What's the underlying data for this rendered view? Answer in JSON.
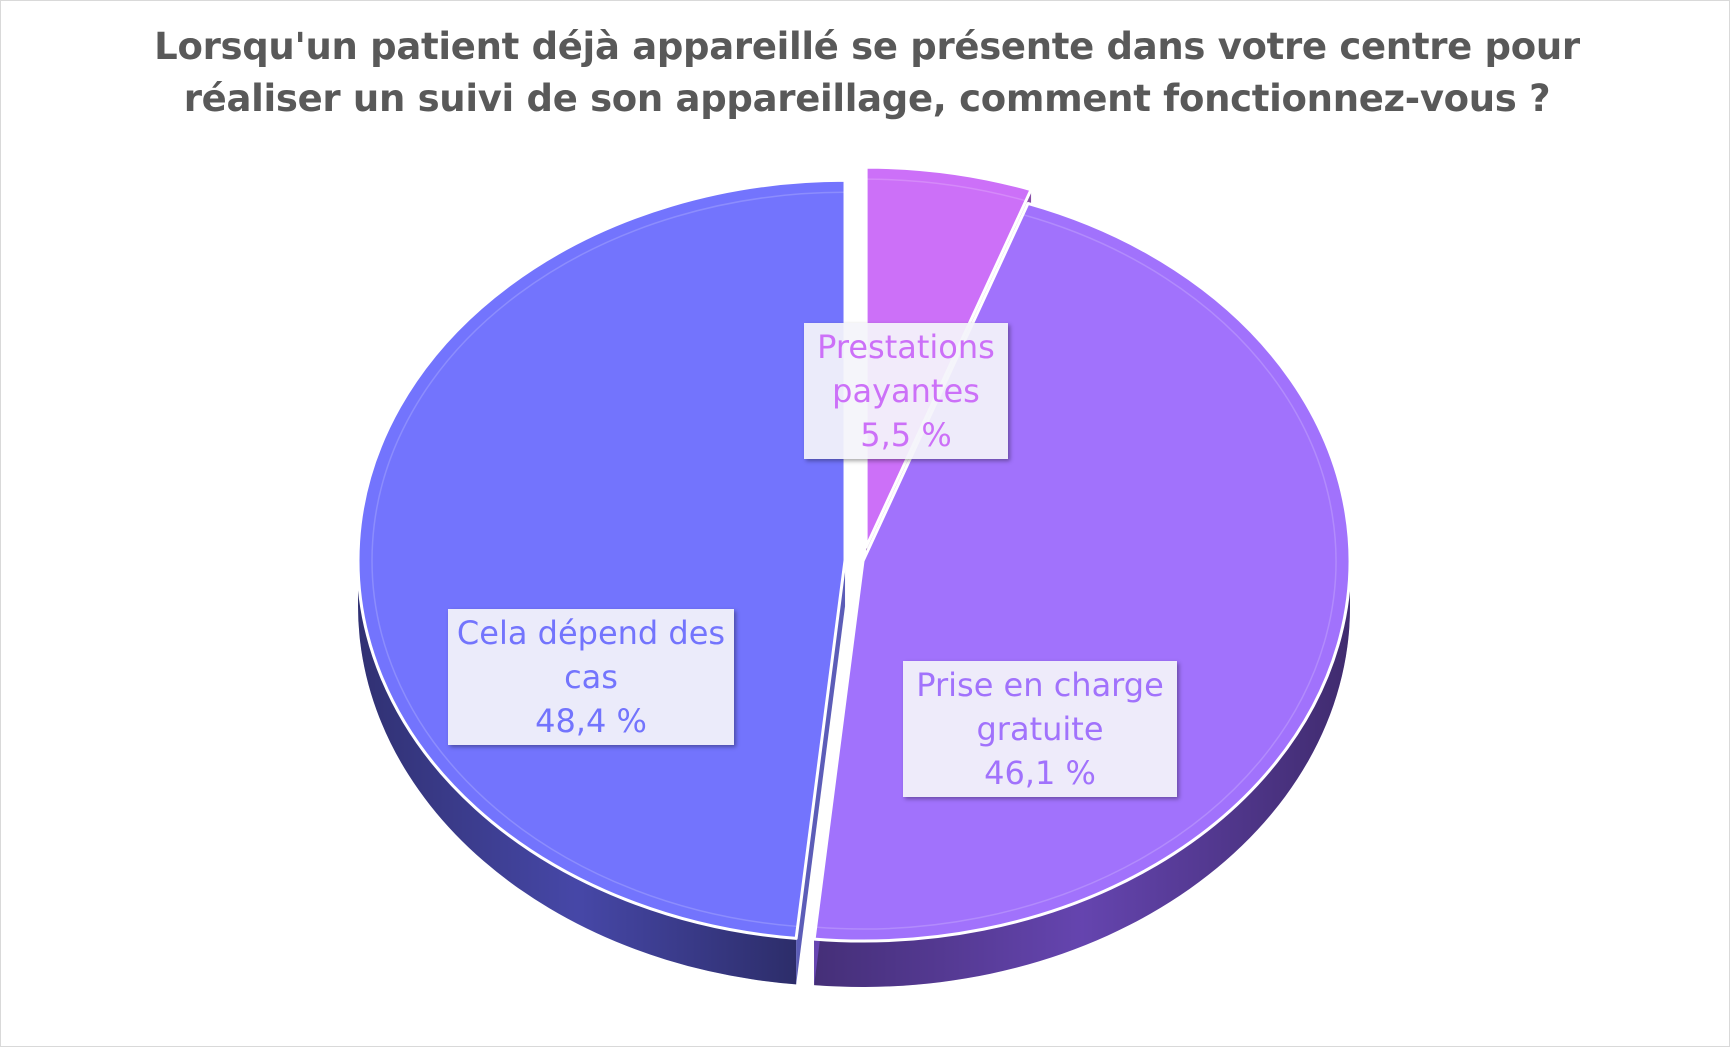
{
  "chart_data": {
    "type": "pie",
    "title_lines": [
      "Lorsqu'un patient déjà appareillé se présente dans votre centre pour",
      "réaliser un suivi de son appareillage, comment fonctionnez-vous ?"
    ],
    "slices": [
      {
        "name_lines": [
          "Prestations",
          "payantes"
        ],
        "value": 5.5,
        "value_label": "5,5 %",
        "color": "#cc70f8",
        "side_color": "#7a3a9c",
        "exploded": true
      },
      {
        "name_lines": [
          "Prise en charge",
          "gratuite"
        ],
        "value": 46.1,
        "value_label": "46,1 %",
        "color": "#a172fc",
        "side_color": "#6a48b8",
        "exploded": false
      },
      {
        "name_lines": [
          "Cela dépend des",
          "cas"
        ],
        "value": 48.4,
        "value_label": "48,4 %",
        "color": "#7374fd",
        "side_color": "#4a4bb0",
        "exploded": true
      }
    ]
  }
}
